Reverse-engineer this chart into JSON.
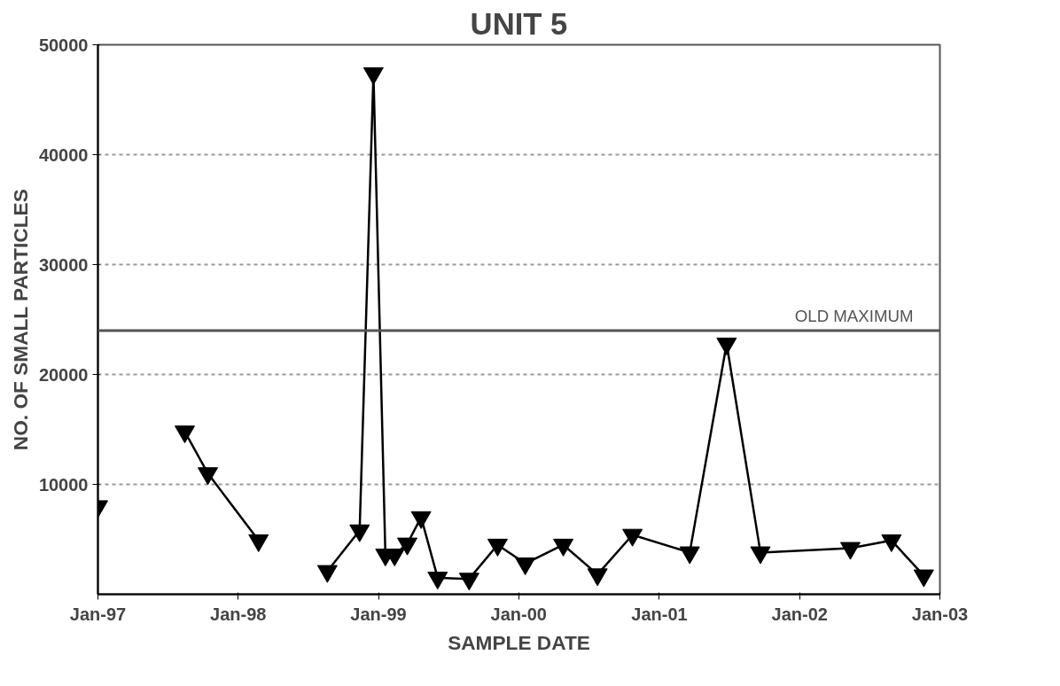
{
  "chart_data": {
    "type": "line",
    "title": "UNIT 5",
    "xlabel": "SAMPLE DATE",
    "ylabel": "NO. OF SMALL PARTICLES",
    "x": [
      "1997-01-01",
      "1997-05-01",
      "1997-08-15",
      "1997-10-14",
      "1998-02-23",
      "1998-05-18",
      "1998-08-21",
      "1998-11-13",
      "1998-12-19",
      "1999-01-19",
      "1999-02-12",
      "1999-03-17",
      "1999-04-22",
      "1999-06-04",
      "1999-08-25",
      "1999-11-07",
      "2000-01-18",
      "2000-04-26",
      "2000-07-24",
      "2000-10-23",
      "2001-03-21",
      "2001-06-25",
      "2001-09-21",
      "2002-05-13",
      "2002-08-28",
      "2002-11-20"
    ],
    "series": [
      {
        "color": "#000000",
        "values": [
          8000,
          null,
          14800,
          11000,
          4900,
          null,
          2100,
          5800,
          47400,
          3600,
          3600,
          4600,
          7000,
          1500,
          1400,
          4500,
          2800,
          4500,
          1800,
          5400,
          3800,
          22800,
          3800,
          4200,
          4900,
          1700
        ]
      }
    ],
    "xlim": [
      "1997-01",
      "2003-01"
    ],
    "xticks": [
      {
        "value": "1997-01",
        "label": "Jan-97"
      },
      {
        "value": "1998-01",
        "label": "Jan-98"
      },
      {
        "value": "1999-01",
        "label": "Jan-99"
      },
      {
        "value": "2000-01",
        "label": "Jan-00"
      },
      {
        "value": "2001-01",
        "label": "Jan-01"
      },
      {
        "value": "2002-01",
        "label": "Jan-02"
      },
      {
        "value": "2003-01",
        "label": "Jan-03"
      }
    ],
    "ylim": [
      0,
      50000
    ],
    "yticks": [
      10000,
      20000,
      30000,
      40000,
      50000
    ],
    "grid": "y",
    "marker": "triangle",
    "line_style": "solid",
    "ref_lines": [
      {
        "axis": "y",
        "value": 24000,
        "label": "OLD MAXIMUM",
        "color": "#555555"
      }
    ]
  }
}
